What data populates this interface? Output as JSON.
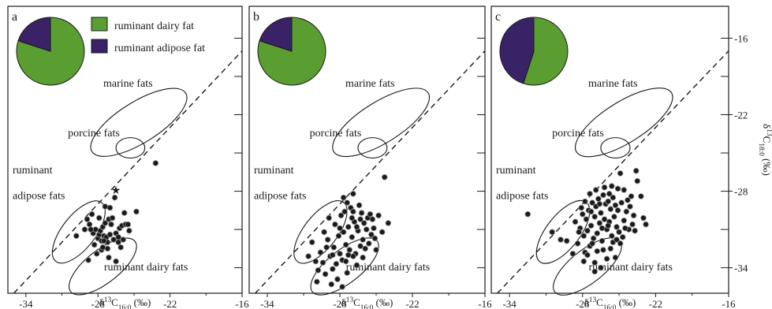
{
  "legend": {
    "dairy_label": "ruminant dairy fat",
    "adipose_label": "ruminant adipose fat",
    "dairy_color": "#5a9e32",
    "adipose_color": "#3a2266"
  },
  "axes": {
    "xlabel": "δ13C16:0 (‰)",
    "ylabel": "δ13C18:0 (‰)",
    "xlim": [
      -35.5,
      -16
    ],
    "ylim": [
      -36,
      -13.5
    ],
    "x_ticks": [
      "-34",
      "-28",
      "-22",
      "-16"
    ],
    "y_ticks": [
      "-16",
      "-22",
      "-28",
      "-34"
    ]
  },
  "region_labels": {
    "marine": "marine fats",
    "porcine": "porcine fats",
    "ruminant_adipose_1": "ruminant",
    "ruminant_adipose_2": "adipose fats",
    "ruminant_dairy": "ruminant dairy fats"
  },
  "chart_data": [
    {
      "type": "scatter",
      "panel": "a",
      "pie": {
        "dairy_pct": 80,
        "adipose_pct": 20
      },
      "points": [
        [
          -29.8,
          -31.5
        ],
        [
          -28.9,
          -30.2
        ],
        [
          -28.7,
          -30.6
        ],
        [
          -28.5,
          -29.8
        ],
        [
          -28.4,
          -31.3
        ],
        [
          -28.2,
          -31.0
        ],
        [
          -28.0,
          -31.7
        ],
        [
          -27.9,
          -31.4
        ],
        [
          -27.8,
          -31.1
        ],
        [
          -27.7,
          -31.9
        ],
        [
          -27.6,
          -30.8
        ],
        [
          -27.5,
          -31.5
        ],
        [
          -27.4,
          -30.5
        ],
        [
          -27.3,
          -31.6
        ],
        [
          -27.2,
          -32.0
        ],
        [
          -27.1,
          -30.2
        ],
        [
          -27.0,
          -31.4
        ],
        [
          -27.5,
          -31.9
        ],
        [
          -27.2,
          -32.5
        ],
        [
          -27.4,
          -29.2
        ],
        [
          -27.0,
          -29.3
        ],
        [
          -26.8,
          -30.1
        ],
        [
          -26.6,
          -28.5
        ],
        [
          -26.5,
          -31.3
        ],
        [
          -26.3,
          -31.6
        ],
        [
          -26.2,
          -30.9
        ],
        [
          -26.0,
          -30.7
        ],
        [
          -26.3,
          -32.0
        ],
        [
          -25.9,
          -31.8
        ],
        [
          -25.7,
          -30.6
        ],
        [
          -25.8,
          -29.7
        ],
        [
          -25.5,
          -30.6
        ],
        [
          -24.8,
          -29.6
        ],
        [
          -27.7,
          -32.6
        ],
        [
          -28.3,
          -32.2
        ],
        [
          -28.6,
          -31.0
        ],
        [
          -29.1,
          -31.0
        ],
        [
          -28.8,
          -33.4
        ],
        [
          -27.1,
          -33.2
        ],
        [
          -26.5,
          -33.5
        ],
        [
          -23.2,
          -25.8
        ],
        [
          -26.9,
          -30.6
        ],
        [
          -26.7,
          -31.8
        ],
        [
          -27.9,
          -30.1
        ],
        [
          -26.1,
          -32.4
        ],
        [
          -25.4,
          -31.1
        ],
        [
          -28.1,
          -32.9
        ],
        [
          -27.6,
          -32.4
        ]
      ],
      "star": [
        -26.5,
        -27.9
      ]
    },
    {
      "type": "scatter",
      "panel": "b",
      "pie": {
        "dairy_pct": 80,
        "adipose_pct": 20
      },
      "points": [
        [
          -30.3,
          -32.0
        ],
        [
          -30.0,
          -33.5
        ],
        [
          -29.8,
          -34.2
        ],
        [
          -29.6,
          -32.8
        ],
        [
          -29.4,
          -33.6
        ],
        [
          -29.2,
          -34.5
        ],
        [
          -29.0,
          -31.8
        ],
        [
          -28.8,
          -33.1
        ],
        [
          -28.6,
          -34.1
        ],
        [
          -28.5,
          -32.4
        ],
        [
          -28.3,
          -33.7
        ],
        [
          -28.1,
          -31.5
        ],
        [
          -28.0,
          -32.9
        ],
        [
          -27.8,
          -33.4
        ],
        [
          -27.7,
          -31.2
        ],
        [
          -27.5,
          -32.2
        ],
        [
          -27.3,
          -30.8
        ],
        [
          -27.2,
          -32.6
        ],
        [
          -27.0,
          -31.6
        ],
        [
          -26.8,
          -30.4
        ],
        [
          -26.7,
          -32.9
        ],
        [
          -26.5,
          -31.1
        ],
        [
          -26.3,
          -30.2
        ],
        [
          -26.1,
          -31.8
        ],
        [
          -25.9,
          -32.5
        ],
        [
          -25.7,
          -30.1
        ],
        [
          -25.5,
          -29.8
        ],
        [
          -25.4,
          -31.4
        ],
        [
          -25.2,
          -30.9
        ],
        [
          -24.8,
          -29.9
        ],
        [
          -24.5,
          -31.2
        ],
        [
          -24.0,
          -30.5
        ],
        [
          -28.4,
          -30.6
        ],
        [
          -28.9,
          -30.1
        ],
        [
          -27.9,
          -29.9
        ],
        [
          -27.6,
          -29.6
        ],
        [
          -27.4,
          -28.9
        ],
        [
          -27.1,
          -29.3
        ],
        [
          -26.9,
          -29.6
        ],
        [
          -26.4,
          -29.1
        ],
        [
          -26.2,
          -29.7
        ],
        [
          -26.0,
          -30.5
        ],
        [
          -25.8,
          -31.0
        ],
        [
          -27.5,
          -33.5
        ],
        [
          -26.9,
          -33.1
        ],
        [
          -26.6,
          -33.8
        ],
        [
          -27.4,
          -34.4
        ],
        [
          -28.2,
          -34.9
        ],
        [
          -29.9,
          -35.1
        ],
        [
          -28.7,
          -35.3
        ],
        [
          -27.8,
          -35.5
        ],
        [
          -26.1,
          -33.2
        ],
        [
          -25.6,
          -32.1
        ],
        [
          -25.0,
          -32.6
        ],
        [
          -29.3,
          -31.2
        ],
        [
          -28.0,
          -30.9
        ],
        [
          -27.0,
          -30.1
        ],
        [
          -26.6,
          -30.8
        ],
        [
          -25.3,
          -30.2
        ],
        [
          -24.3,
          -26.9
        ],
        [
          -28.6,
          -33.0
        ],
        [
          -27.3,
          -33.0
        ],
        [
          -29.1,
          -32.4
        ],
        [
          -26.3,
          -32.3
        ],
        [
          -25.1,
          -31.7
        ],
        [
          -27.7,
          -28.5
        ],
        [
          -26.9,
          -28.2
        ],
        [
          -30.6,
          -33.1
        ]
      ]
    },
    {
      "type": "scatter",
      "panel": "c",
      "pie": {
        "dairy_pct": 55,
        "adipose_pct": 45
      },
      "points": [
        [
          -32.5,
          -29.8
        ],
        [
          -30.5,
          -31.2
        ],
        [
          -29.8,
          -31.8
        ],
        [
          -29.3,
          -31.9
        ],
        [
          -28.6,
          -30.4
        ],
        [
          -28.4,
          -32.1
        ],
        [
          -28.2,
          -30.9
        ],
        [
          -28.0,
          -29.8
        ],
        [
          -27.9,
          -31.5
        ],
        [
          -27.8,
          -32.8
        ],
        [
          -27.7,
          -30.2
        ],
        [
          -27.6,
          -31.1
        ],
        [
          -27.5,
          -29.5
        ],
        [
          -27.4,
          -32.3
        ],
        [
          -27.3,
          -30.7
        ],
        [
          -27.2,
          -28.9
        ],
        [
          -27.1,
          -31.7
        ],
        [
          -27.0,
          -30.0
        ],
        [
          -26.9,
          -29.2
        ],
        [
          -26.8,
          -31.3
        ],
        [
          -26.7,
          -28.6
        ],
        [
          -26.6,
          -30.5
        ],
        [
          -26.5,
          -29.7
        ],
        [
          -26.4,
          -31.9
        ],
        [
          -26.3,
          -28.3
        ],
        [
          -26.2,
          -30.2
        ],
        [
          -26.1,
          -29.0
        ],
        [
          -26.0,
          -31.0
        ],
        [
          -25.9,
          -28.8
        ],
        [
          -25.8,
          -30.4
        ],
        [
          -25.7,
          -29.4
        ],
        [
          -25.6,
          -31.5
        ],
        [
          -25.5,
          -28.5
        ],
        [
          -25.4,
          -30.0
        ],
        [
          -25.3,
          -29.1
        ],
        [
          -25.2,
          -30.8
        ],
        [
          -25.1,
          -29.5
        ],
        [
          -25.0,
          -31.2
        ],
        [
          -24.8,
          -28.9
        ],
        [
          -24.6,
          -30.3
        ],
        [
          -24.4,
          -29.6
        ],
        [
          -24.2,
          -31.0
        ],
        [
          -24.0,
          -28.4
        ],
        [
          -23.8,
          -29.9
        ],
        [
          -23.5,
          -27.2
        ],
        [
          -23.2,
          -28.4
        ],
        [
          -23.0,
          -30.1
        ],
        [
          -22.8,
          -30.6
        ],
        [
          -24.9,
          -26.6
        ],
        [
          -23.6,
          -26.4
        ],
        [
          -27.6,
          -33.0
        ],
        [
          -27.0,
          -33.6
        ],
        [
          -26.5,
          -34.0
        ],
        [
          -26.0,
          -33.3
        ],
        [
          -25.7,
          -32.5
        ],
        [
          -25.3,
          -33.2
        ],
        [
          -24.9,
          -32.1
        ],
        [
          -26.8,
          -32.7
        ],
        [
          -27.9,
          -33.5
        ],
        [
          -28.3,
          -31.2
        ],
        [
          -28.8,
          -32.9
        ],
        [
          -27.4,
          -28.2
        ],
        [
          -26.9,
          -27.9
        ],
        [
          -26.2,
          -27.7
        ],
        [
          -25.6,
          -27.6
        ],
        [
          -25.1,
          -27.8
        ],
        [
          -24.6,
          -27.9
        ],
        [
          -24.3,
          -28.7
        ],
        [
          -23.9,
          -30.6
        ],
        [
          -24.7,
          -31.6
        ],
        [
          -25.5,
          -32.0
        ],
        [
          -26.3,
          -32.6
        ],
        [
          -27.2,
          -32.1
        ],
        [
          -27.8,
          -28.8
        ],
        [
          -28.1,
          -29.3
        ],
        [
          -26.6,
          -29.0
        ],
        [
          -25.9,
          -30.7
        ],
        [
          -25.2,
          -31.8
        ],
        [
          -24.5,
          -30.9
        ],
        [
          -23.7,
          -31.1
        ],
        [
          -26.4,
          -30.9
        ],
        [
          -27.3,
          -29.6
        ],
        [
          -25.8,
          -28.2
        ],
        [
          -24.1,
          -29.2
        ],
        [
          -27.0,
          -34.3
        ]
      ]
    }
  ]
}
